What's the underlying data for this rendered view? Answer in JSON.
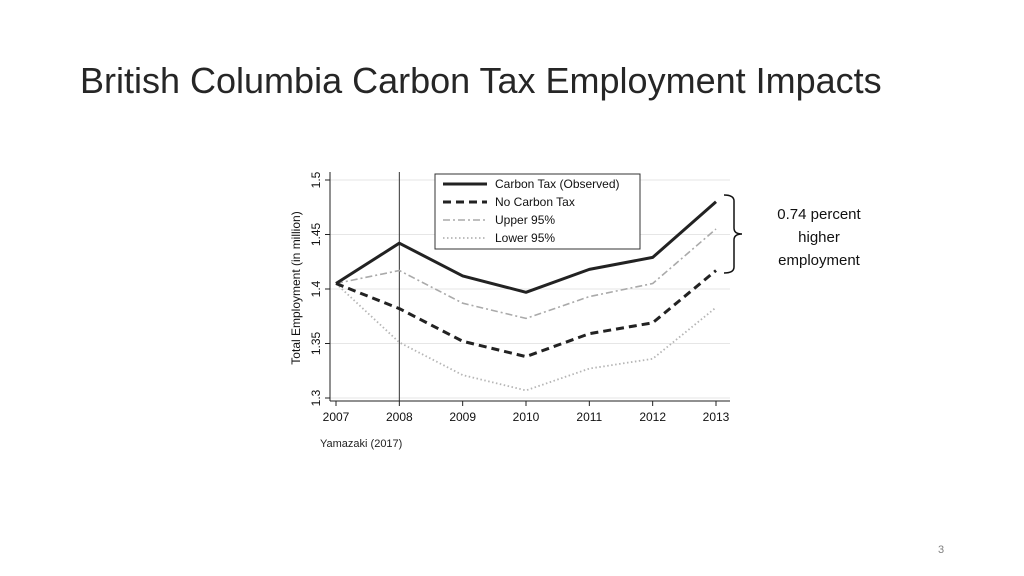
{
  "slide": {
    "title": "British Columbia Carbon Tax Employment Impacts",
    "source": "Yamazaki (2017)",
    "page_number": "3",
    "annotation_lines": [
      "0.74 percent",
      "higher",
      "employment"
    ]
  },
  "colors": {
    "observed": "#222222",
    "no_tax": "#222222",
    "upper": "#aaaaaa",
    "lower": "#b5b5b5",
    "grid": "#e6e6e6",
    "vline": "#333333"
  },
  "chart_data": {
    "type": "line",
    "title": "",
    "xlabel": "",
    "ylabel": "Total Employment (in million)",
    "x": [
      2007,
      2008,
      2009,
      2010,
      2011,
      2012,
      2013
    ],
    "x_tick_labels": [
      "2007",
      "2008",
      "2009",
      "2010",
      "2011",
      "2012",
      "2013"
    ],
    "ylim": [
      1.3,
      1.5
    ],
    "y_ticks": [
      1.3,
      1.35,
      1.4,
      1.45,
      1.5
    ],
    "y_tick_labels": [
      "1.3",
      "1.35",
      "1.4",
      "1.45",
      "1.5"
    ],
    "grid": true,
    "vertical_line_x": 2008,
    "legend_position": "top-center",
    "series": [
      {
        "name": "Carbon Tax (Observed)",
        "style": "solid",
        "values": [
          1.405,
          1.442,
          1.412,
          1.397,
          1.418,
          1.429,
          1.48
        ]
      },
      {
        "name": "No Carbon Tax",
        "style": "dashed",
        "values": [
          1.405,
          1.382,
          1.352,
          1.338,
          1.359,
          1.369,
          1.417
        ]
      },
      {
        "name": "Upper 95%",
        "style": "dashdot",
        "values": [
          1.405,
          1.417,
          1.387,
          1.373,
          1.393,
          1.405,
          1.455
        ]
      },
      {
        "name": "Lower 95%",
        "style": "dotted",
        "values": [
          1.405,
          1.351,
          1.321,
          1.307,
          1.327,
          1.336,
          1.383
        ]
      }
    ]
  }
}
